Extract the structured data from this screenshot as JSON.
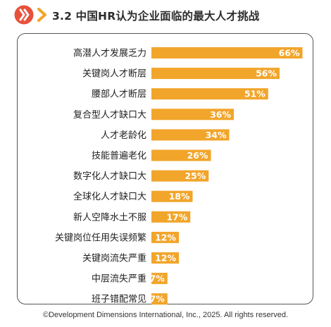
{
  "header": {
    "title": "3.2 中国HR认为企业面临的最大人才挑战",
    "logo_icon": "ddi-logo-icon",
    "chevron_icon": "chevron-right-icon"
  },
  "colors": {
    "bar": "#f2a52b",
    "logo": "#e8503a",
    "chevron": "#f2a52b",
    "label_text": "#1f1f1f",
    "value_text": "#ffffff"
  },
  "chart_data": {
    "type": "bar",
    "orientation": "horizontal",
    "title": "3.2 中国HR认为企业面临的最大人才挑战",
    "xlabel": "",
    "ylabel": "",
    "xlim": [
      0,
      100
    ],
    "grid": false,
    "categories": [
      "高潜人才发展乏力",
      "关键岗人才断层",
      "腰部人才断层",
      "复合型人才缺口大",
      "人才老龄化",
      "技能普遍老化",
      "数字化人才缺口大",
      "全球化人才缺口大",
      "新人空降水土不服",
      "关键岗位任用失误频繁",
      "关键岗流失严重",
      "中层流失严重",
      "班子错配常见"
    ],
    "values": [
      66,
      56,
      51,
      36,
      34,
      26,
      25,
      18,
      17,
      12,
      12,
      7,
      7
    ],
    "value_labels": [
      "66%",
      "56%",
      "51%",
      "36%",
      "34%",
      "26%",
      "25%",
      "18%",
      "17%",
      "12%",
      "12%",
      "7%",
      "7%"
    ]
  },
  "footer": {
    "copyright": "©Development Dimensions International, Inc., 2025. All rights reserved."
  }
}
